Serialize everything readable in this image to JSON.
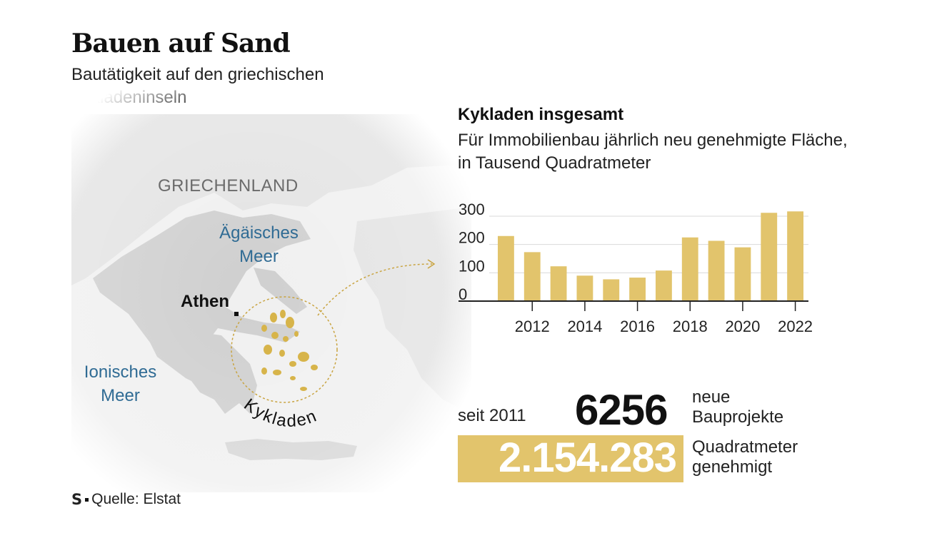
{
  "title": "Bauen auf Sand",
  "subtitle": "Bautätigkeit auf den griechischen Kykladeninseln",
  "map": {
    "country_label": "GRIECHENLAND",
    "aegean_line1": "Ägäisches",
    "aegean_line2": "Meer",
    "ionian_line1": "Ionisches",
    "ionian_line2": "Meer",
    "city_label": "Athen",
    "region_label": "Kykladen",
    "land_color": "#dcdcdc",
    "highlight_color": "#d7b44a"
  },
  "chart_data": {
    "type": "bar",
    "title": "Kykladen insgesamt",
    "subtitle": "Für Immobilienbau jährlich neu genehmigte Fläche, in Tausend Quadratmeter",
    "categories": [
      "2011",
      "2012",
      "2013",
      "2014",
      "2015",
      "2016",
      "2017",
      "2018",
      "2019",
      "2020",
      "2021",
      "2022"
    ],
    "values": [
      230,
      173,
      123,
      90,
      77,
      83,
      108,
      225,
      213,
      190,
      312,
      317
    ],
    "yticks": [
      0,
      100,
      200,
      300
    ],
    "xtick_labels": [
      "2012",
      "2014",
      "2016",
      "2018",
      "2020",
      "2022"
    ],
    "ylim": [
      0,
      300
    ],
    "bar_color": "#e2c46c",
    "grid": true
  },
  "stats": {
    "since_label": "seit 2011",
    "projects_value": "6256",
    "projects_label_line1": "neue",
    "projects_label_line2": "Bauprojekte",
    "area_value": "2.154.283",
    "area_label_line1": "Quadratmeter",
    "area_label_line2": "genehmigt"
  },
  "source": {
    "logo": "S",
    "text": "Quelle: Elstat"
  }
}
